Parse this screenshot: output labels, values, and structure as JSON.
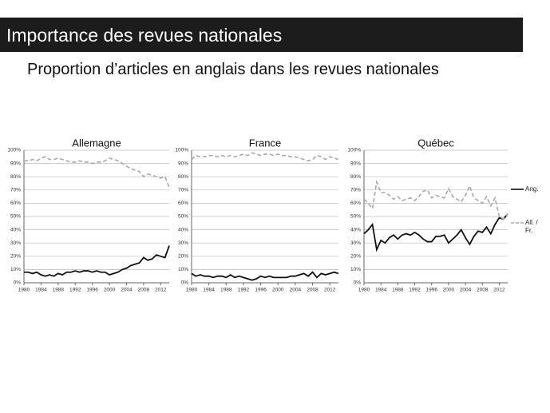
{
  "slide": {
    "title": "Importance des revues nationales",
    "subtitle": "Proportion d’articles en anglais dans les revues nationales"
  },
  "chart_data": [
    {
      "type": "line",
      "title": "Allemagne",
      "x": [
        1980,
        1981,
        1982,
        1983,
        1984,
        1985,
        1986,
        1987,
        1988,
        1989,
        1990,
        1991,
        1992,
        1993,
        1994,
        1995,
        1996,
        1997,
        1998,
        1999,
        2000,
        2001,
        2002,
        2003,
        2004,
        2005,
        2006,
        2007,
        2008,
        2009,
        2010,
        2011,
        2012,
        2013,
        2014
      ],
      "xlim": [
        1980,
        2014
      ],
      "xticks": [
        1980,
        1984,
        1988,
        1992,
        1996,
        2000,
        2004,
        2008,
        2012
      ],
      "ylim": [
        0,
        100
      ],
      "yticks": [
        {
          "value": 0,
          "label": "0%"
        },
        {
          "value": 10,
          "label": "10%"
        },
        {
          "value": 20,
          "label": "20%"
        },
        {
          "value": 30,
          "label": "30%"
        },
        {
          "value": 40,
          "label": "40%"
        },
        {
          "value": 50,
          "label": "50%"
        },
        {
          "value": 60,
          "label": "60%"
        },
        {
          "value": 70,
          "label": "70%"
        },
        {
          "value": 80,
          "label": "80%"
        },
        {
          "value": 90,
          "label": "90%"
        },
        {
          "value": 100,
          "label": "100%"
        }
      ],
      "grid": true,
      "series": [
        {
          "color": "#111111",
          "values": [
            8,
            8,
            7,
            8,
            6,
            5,
            6,
            5,
            7,
            6,
            8,
            8,
            9,
            8,
            9,
            9,
            8,
            9,
            8,
            8,
            6,
            7,
            8,
            10,
            11,
            13,
            14,
            15,
            19,
            17,
            18,
            21,
            20,
            19,
            28
          ]
        },
        {
          "color": "#aaaaaa",
          "dashed": true,
          "values": [
            92,
            92,
            93,
            92,
            94,
            95,
            93,
            93,
            94,
            93,
            92,
            91,
            91,
            92,
            91,
            91,
            90,
            91,
            91,
            92,
            94,
            93,
            92,
            90,
            88,
            86,
            85,
            84,
            80,
            82,
            81,
            80,
            79,
            80,
            72
          ]
        }
      ]
    },
    {
      "type": "line",
      "title": "France",
      "x": [
        1980,
        1981,
        1982,
        1983,
        1984,
        1985,
        1986,
        1987,
        1988,
        1989,
        1990,
        1991,
        1992,
        1993,
        1994,
        1995,
        1996,
        1997,
        1998,
        1999,
        2000,
        2001,
        2002,
        2003,
        2004,
        2005,
        2006,
        2007,
        2008,
        2009,
        2010,
        2011,
        2012,
        2013,
        2014
      ],
      "xlim": [
        1980,
        2014
      ],
      "xticks": [
        1980,
        1984,
        1988,
        1992,
        1996,
        2000,
        2004,
        2008,
        2012
      ],
      "ylim": [
        0,
        100
      ],
      "yticks": [
        {
          "value": 0,
          "label": "0%"
        },
        {
          "value": 10,
          "label": "10%"
        },
        {
          "value": 20,
          "label": "20%"
        },
        {
          "value": 30,
          "label": "30%"
        },
        {
          "value": 40,
          "label": "40%"
        },
        {
          "value": 50,
          "label": "50%"
        },
        {
          "value": 60,
          "label": "60%"
        },
        {
          "value": 70,
          "label": "70%"
        },
        {
          "value": 80,
          "label": "80%"
        },
        {
          "value": 90,
          "label": "90%"
        },
        {
          "value": 100,
          "label": "100%"
        }
      ],
      "grid": true,
      "series": [
        {
          "color": "#111111",
          "values": [
            7,
            5,
            6,
            5,
            5,
            4,
            5,
            5,
            4,
            6,
            4,
            5,
            4,
            3,
            2,
            3,
            5,
            4,
            5,
            4,
            4,
            4,
            4,
            5,
            5,
            6,
            7,
            5,
            8,
            4,
            7,
            6,
            7,
            8,
            7
          ]
        },
        {
          "color": "#aaaaaa",
          "dashed": true,
          "values": [
            93,
            96,
            95,
            95,
            96,
            96,
            95,
            96,
            95,
            96,
            95,
            96,
            97,
            96,
            98,
            97,
            96,
            97,
            97,
            96,
            97,
            96,
            96,
            95,
            95,
            94,
            93,
            92,
            93,
            96,
            95,
            93,
            95,
            94,
            93
          ]
        }
      ]
    },
    {
      "type": "line",
      "title": "Québec",
      "x": [
        1980,
        1981,
        1982,
        1983,
        1984,
        1985,
        1986,
        1987,
        1988,
        1989,
        1990,
        1991,
        1992,
        1993,
        1994,
        1995,
        1996,
        1997,
        1998,
        1999,
        2000,
        2001,
        2002,
        2003,
        2004,
        2005,
        2006,
        2007,
        2008,
        2009,
        2010,
        2011,
        2012,
        2013,
        2014
      ],
      "xlim": [
        1980,
        2014
      ],
      "xticks": [
        1980,
        1984,
        1988,
        1992,
        1996,
        2000,
        2004,
        2008,
        2012
      ],
      "ylim": [
        0,
        100
      ],
      "yticks": [
        {
          "value": 0,
          "label": "0%"
        },
        {
          "value": 10,
          "label": "10%"
        },
        {
          "value": 20,
          "label": "20%"
        },
        {
          "value": 30,
          "label": "30%"
        },
        {
          "value": 40,
          "label": "40%"
        },
        {
          "value": 50,
          "label": "50%"
        },
        {
          "value": 60,
          "label": "60%"
        },
        {
          "value": 70,
          "label": "70%"
        },
        {
          "value": 80,
          "label": "80%"
        },
        {
          "value": 90,
          "label": "90%"
        },
        {
          "value": 100,
          "label": "100%"
        }
      ],
      "grid": true,
      "series": [
        {
          "name": "Ang.",
          "color": "#111111",
          "values": [
            37,
            40,
            44,
            25,
            32,
            30,
            34,
            36,
            33,
            36,
            37,
            36,
            38,
            36,
            33,
            31,
            31,
            35,
            35,
            36,
            30,
            33,
            36,
            40,
            34,
            29,
            35,
            39,
            38,
            42,
            37,
            44,
            49,
            48,
            52
          ]
        },
        {
          "name": "All. / Fr.",
          "color": "#aaaaaa",
          "dashed": true,
          "values": [
            63,
            60,
            56,
            76,
            68,
            68,
            66,
            63,
            65,
            62,
            63,
            64,
            62,
            65,
            69,
            70,
            64,
            66,
            65,
            64,
            71,
            65,
            63,
            61,
            66,
            73,
            64,
            62,
            60,
            65,
            58,
            64,
            50,
            48,
            52
          ]
        }
      ]
    }
  ]
}
